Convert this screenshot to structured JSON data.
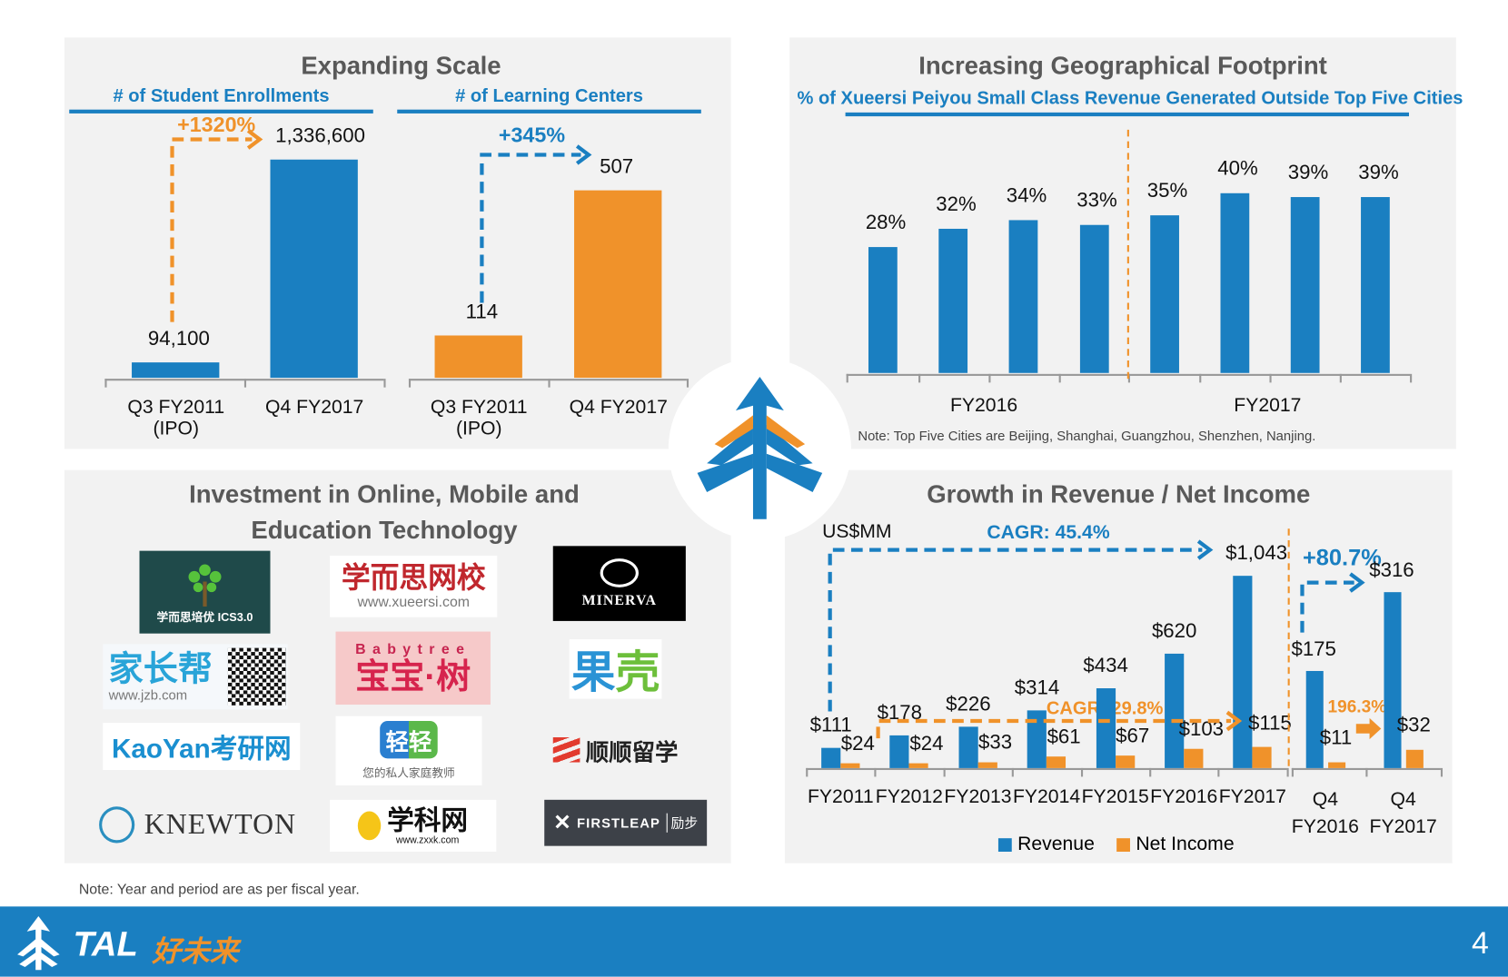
{
  "colors": {
    "blue": "#1a7fc1",
    "orange": "#f0922a",
    "panel": "#f2f2f2"
  },
  "scale": {
    "title": "Expanding Scale",
    "enrollments": {
      "subtitle": "# of Student Enrollments",
      "change": "+1320%",
      "categories": [
        "Q3 FY2011\n(IPO)",
        "Q4 FY2017"
      ],
      "labels": [
        "94,100",
        "1,336,600"
      ],
      "values": [
        94100,
        1336600
      ]
    },
    "centers": {
      "subtitle": "# of Learning Centers",
      "change": "+345%",
      "categories": [
        "Q3 FY2011\n(IPO)",
        "Q4 FY2017"
      ],
      "labels": [
        "114",
        "507"
      ],
      "values": [
        114,
        507
      ]
    }
  },
  "geo": {
    "title": "Increasing Geographical Footprint",
    "subtitle": "% of Xueersi Peiyou Small Class Revenue Generated Outside Top Five Cities",
    "values": [
      28,
      32,
      34,
      33,
      35,
      40,
      39,
      39
    ],
    "labels": [
      "28%",
      "32%",
      "34%",
      "33%",
      "35%",
      "40%",
      "39%",
      "39%"
    ],
    "groups": [
      "FY2016",
      "FY2017"
    ],
    "note": "Note: Top Five Cities are Beijing, Shanghai, Guangzhou, Shenzhen, Nanjing."
  },
  "invest": {
    "title_line1": "Investment in Online, Mobile and",
    "title_line2": "Education Technology",
    "logos": [
      "学而思培优 ICS3.0",
      "学而思网校",
      "www.xueersi.com",
      "MINERVA",
      "家长帮",
      "www.jzb.com",
      "Babytree",
      "宝宝·树",
      "果壳",
      "KaoYan考研网",
      "轻轻",
      "您的私人家庭教师",
      "顺顺留学",
      "KNEWTON",
      "学科网",
      "www.zxxk.com",
      "FIRSTLEAP",
      "励步"
    ]
  },
  "growth": {
    "title": "Growth in Revenue / Net Income",
    "unit": "US$MM",
    "categories": [
      "FY2011",
      "FY2012",
      "FY2013",
      "FY2014",
      "FY2015",
      "FY2016",
      "FY2017"
    ],
    "revenue": [
      111,
      178,
      226,
      314,
      434,
      620,
      1043
    ],
    "net_income": [
      24,
      24,
      33,
      61,
      67,
      103,
      115
    ],
    "revenue_labels": [
      "$111",
      "$178",
      "$226",
      "$314",
      "$434",
      "$620",
      "$1,043"
    ],
    "net_income_labels": [
      "$24",
      "$24",
      "$33",
      "$61",
      "$67",
      "$103",
      "$115"
    ],
    "quarter_categories": [
      "Q4\nFY2016",
      "Q4\nFY2017"
    ],
    "quarter_revenue": [
      175,
      316
    ],
    "quarter_net_income": [
      11,
      32
    ],
    "quarter_revenue_labels": [
      "$175",
      "$316"
    ],
    "quarter_net_income_labels": [
      "$11",
      "$32"
    ],
    "revenue_cagr": "CAGR: 45.4%",
    "net_income_cagr": "CAGR: 29.8%",
    "quarter_revenue_growth": "+80.7%",
    "quarter_net_income_growth": "196.3%",
    "legend": [
      "Revenue",
      "Net Income"
    ]
  },
  "footnote": "Note: Year and period are as per fiscal year.",
  "footer": {
    "brand": "TAL",
    "brand_cn": "好未来",
    "page": "4"
  }
}
